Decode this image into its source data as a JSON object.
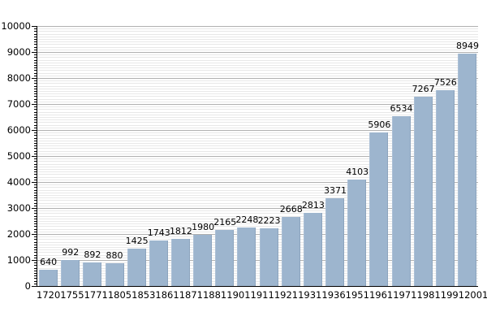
{
  "chart_data": {
    "type": "bar",
    "title": "",
    "xlabel": "",
    "ylabel": "",
    "categories": [
      "1720",
      "1755",
      "1771",
      "1805",
      "1853",
      "1861",
      "1871",
      "1881",
      "1901",
      "1911",
      "1921",
      "1931",
      "1936",
      "1951",
      "1961",
      "1971",
      "1981",
      "1991",
      "2001",
      "2011"
    ],
    "values": [
      640,
      992,
      892,
      880,
      1425,
      1743,
      1812,
      1980,
      2165,
      2248,
      2223,
      2668,
      2813,
      3371,
      4103,
      5906,
      6534,
      7267,
      7526,
      8949
    ],
    "ylim": [
      0,
      10000
    ],
    "y_major_step": 1000,
    "y_minor_step": 100,
    "grid": "horizontal-major-and-minor",
    "legend": "none",
    "bar_value_labels": true
  },
  "colors": {
    "background": "#FFFFFF",
    "bar_fill": "#9DB5CE",
    "bar_edge_light": "#ACC0D6",
    "bar_edge_dark": "#8CA4BE",
    "major_gridline": "#B0B0B0",
    "minor_gridline": "#E8E8E8",
    "axis_line": "#000000",
    "text": "#000000"
  }
}
